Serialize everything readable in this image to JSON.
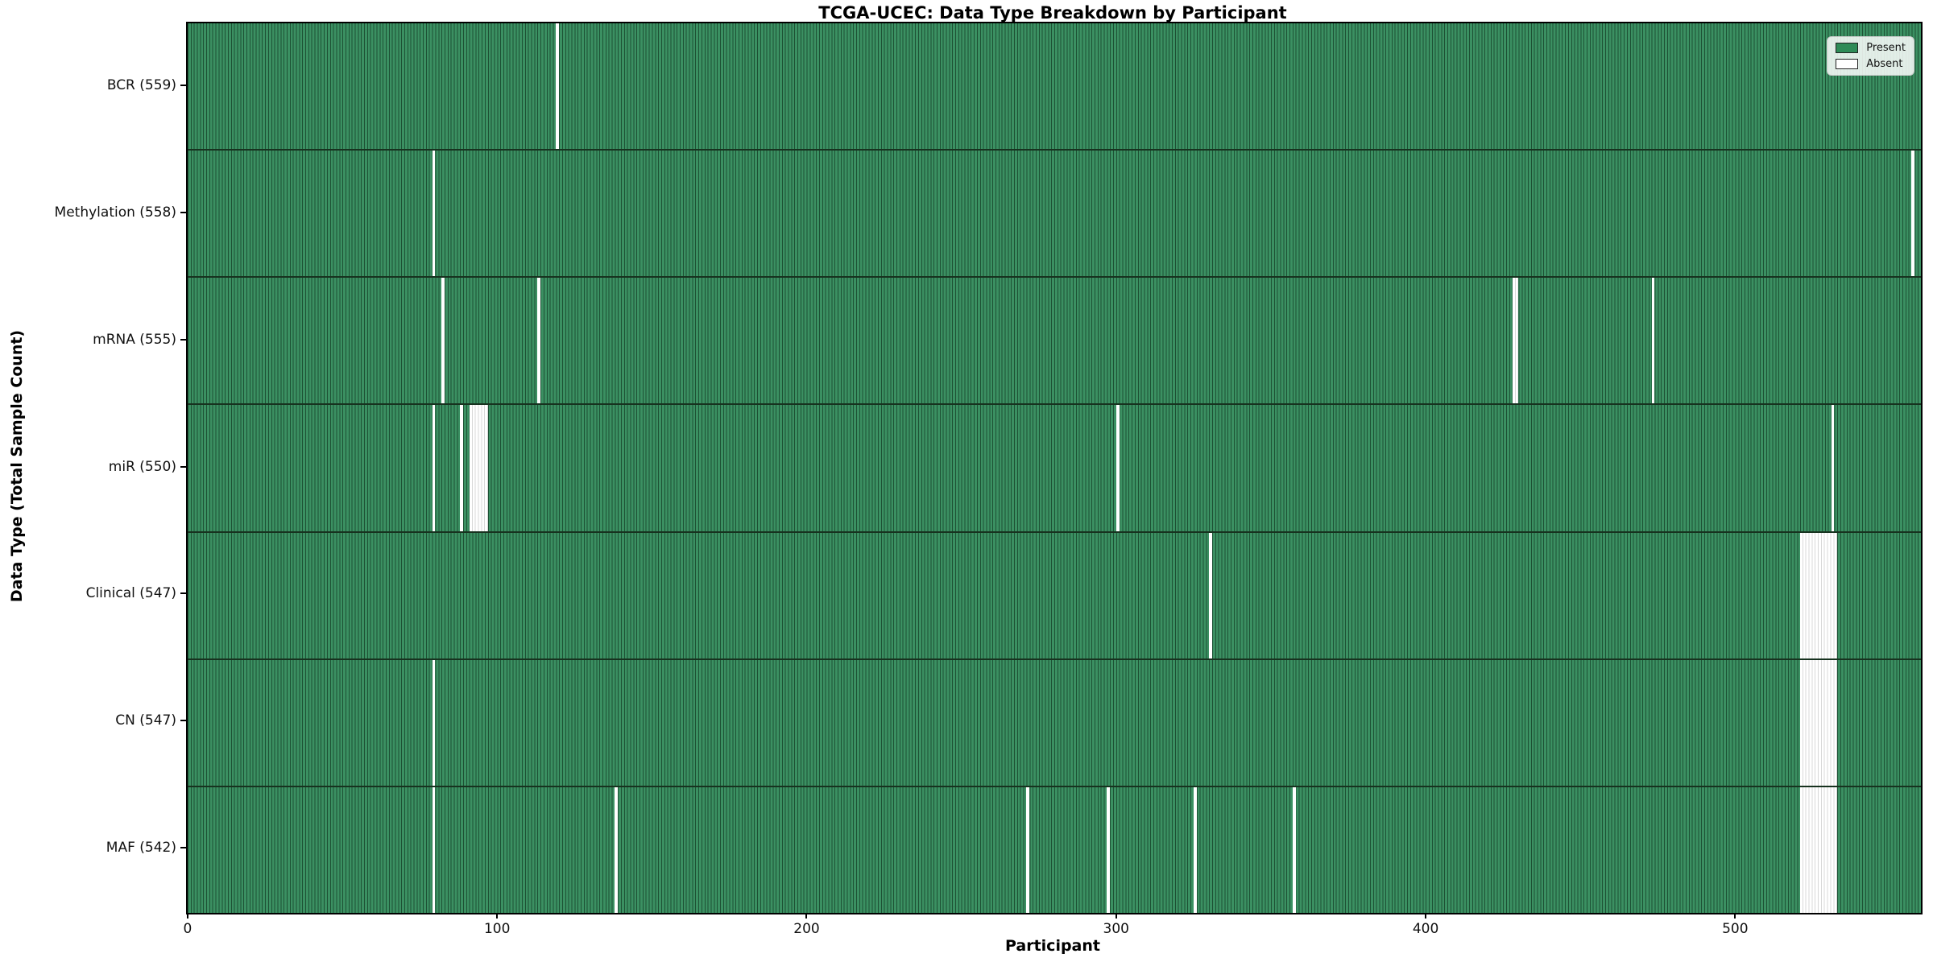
{
  "chart_data": {
    "type": "heatmap",
    "title": "TCGA-UCEC: Data Type Breakdown by Participant",
    "xlabel": "Participant",
    "ylabel": "Data Type (Total Sample Count)",
    "x_ticks": [
      0,
      100,
      200,
      300,
      400,
      500
    ],
    "x_range": [
      0,
      560
    ],
    "participants_total": 560,
    "grid": false,
    "legend": {
      "position": "upper right",
      "items": [
        {
          "label": "Present",
          "color": "#2E8B57"
        },
        {
          "label": "Absent",
          "color": "#FFFFFF"
        }
      ]
    },
    "colors": {
      "present_fill": "#3B9062",
      "present_edge": "#1D5134",
      "absent_fill": "#FFFFFF",
      "absent_edge": "#D8D8D8",
      "spine": "#000000",
      "row_divider": "#17321F"
    },
    "rows": [
      {
        "label": "BCR (559)",
        "data_type": "BCR",
        "sample_count": 559,
        "absent_participants": [
          119
        ]
      },
      {
        "label": "Methylation (558)",
        "data_type": "Methylation",
        "sample_count": 558,
        "absent_participants": [
          79,
          557
        ]
      },
      {
        "label": "mRNA (555)",
        "data_type": "mRNA",
        "sample_count": 555,
        "absent_participants": [
          82,
          113,
          428,
          429,
          473
        ]
      },
      {
        "label": "miR (550)",
        "data_type": "miR",
        "sample_count": 550,
        "absent_participants": [
          79,
          88,
          91,
          92,
          93,
          94,
          95,
          96,
          300,
          531
        ]
      },
      {
        "label": "Clinical (547)",
        "data_type": "Clinical",
        "sample_count": 547,
        "absent_participants": [
          330,
          521,
          522,
          523,
          524,
          525,
          526,
          527,
          528,
          529,
          530,
          531,
          532
        ]
      },
      {
        "label": "CN (547)",
        "data_type": "CN",
        "sample_count": 547,
        "absent_participants": [
          79,
          521,
          522,
          523,
          524,
          525,
          526,
          527,
          528,
          529,
          530,
          531,
          532
        ]
      },
      {
        "label": "MAF (542)",
        "data_type": "MAF",
        "sample_count": 542,
        "absent_participants": [
          79,
          138,
          271,
          297,
          325,
          357,
          521,
          522,
          523,
          524,
          525,
          526,
          527,
          528,
          529,
          530,
          531,
          532
        ]
      }
    ]
  }
}
